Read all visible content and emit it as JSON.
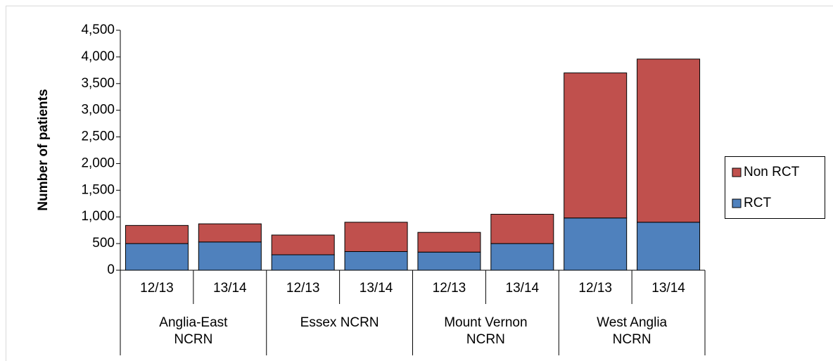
{
  "chart_data": {
    "type": "stacked_bar",
    "y_label": "Number of patients",
    "categories": [
      "12/13",
      "13/14",
      "12/13",
      "13/14",
      "12/13",
      "13/14",
      "12/13",
      "13/14"
    ],
    "groups": [
      "Anglia-East\nNCRN",
      "Essex NCRN",
      "Mount Vernon\nNCRN",
      "West Anglia\nNCRN"
    ],
    "series": [
      {
        "name": "RCT",
        "color": "#4f81bd",
        "values": [
          500,
          530,
          290,
          350,
          340,
          500,
          980,
          900
        ]
      },
      {
        "name": "Non RCT",
        "color": "#c0504d",
        "values": [
          340,
          340,
          370,
          550,
          370,
          550,
          2720,
          3060
        ]
      }
    ],
    "ylim": [
      0,
      4500
    ],
    "yticks": [
      0,
      500,
      {
        "value": 1000,
        "label": "1,000"
      },
      {
        "value": 1500,
        "label": "1,500"
      },
      {
        "value": 2000,
        "label": "2,000"
      },
      {
        "value": 2500,
        "label": "2,500"
      },
      {
        "value": 3000,
        "label": "3,000"
      },
      {
        "value": 3500,
        "label": "3,500"
      },
      {
        "value": 4000,
        "label": "4,000"
      },
      {
        "value": 4500,
        "label": "4,500"
      }
    ],
    "legend": "right"
  }
}
